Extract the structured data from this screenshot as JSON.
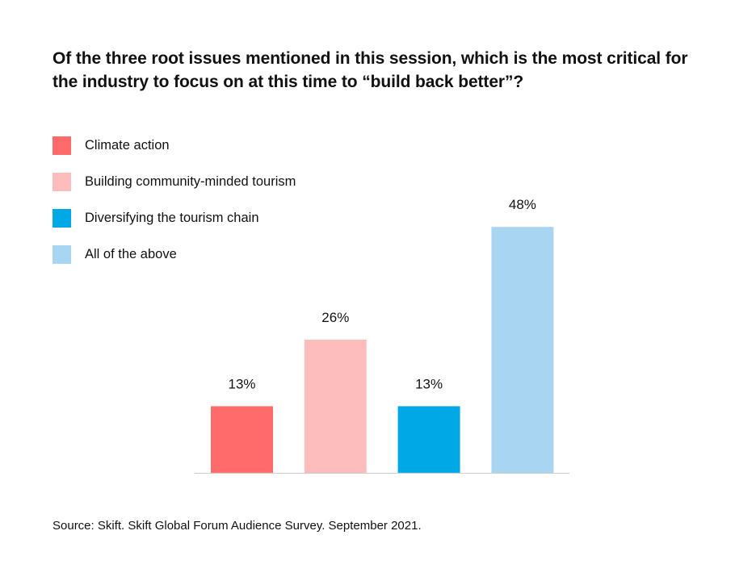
{
  "colors": {
    "climate_action": "#FF6B6B",
    "community_tourism": "#FDBDBD",
    "diversifying": "#00A8E6",
    "all_above": "#A8D5F2",
    "axis": "#CCCCCC"
  },
  "chart_data": {
    "type": "bar",
    "title": "Of the three root issues mentioned in this session, which is the most critical for the industry to focus on at this time to “build back better”?",
    "categories": [
      "Climate action",
      "Building community-minded tourism",
      "Diversifying the tourism chain",
      "All of the above"
    ],
    "values": [
      13,
      26,
      13,
      48
    ],
    "data_labels": [
      "13%",
      "26%",
      "13%",
      "48%"
    ],
    "ylim": [
      0,
      50
    ],
    "grid": false,
    "legend_position": "top-left",
    "xlabel": "",
    "ylabel": ""
  },
  "source": "Source: Skift. Skift Global Forum Audience Survey. September 2021."
}
